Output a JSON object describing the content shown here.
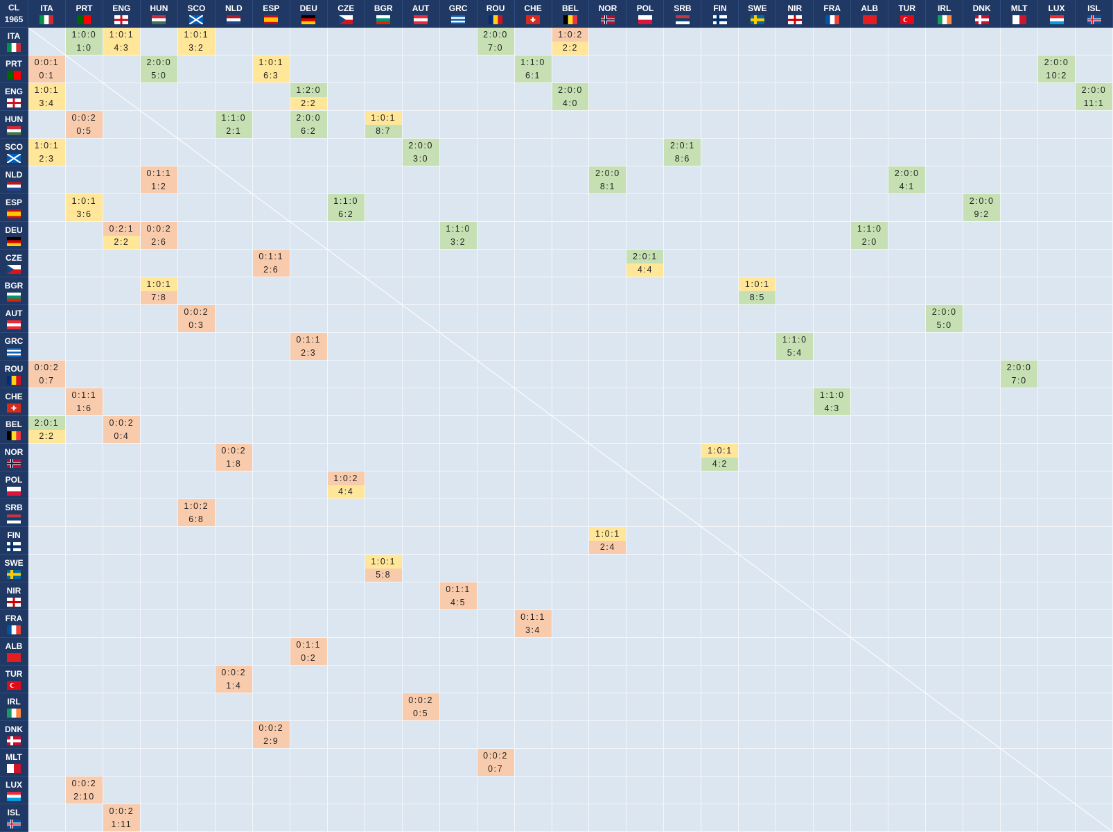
{
  "corner": {
    "competition": "CL",
    "year": "1965"
  },
  "teams": [
    "ITA",
    "PRT",
    "ENG",
    "HUN",
    "SCO",
    "NLD",
    "ESP",
    "DEU",
    "CZE",
    "BGR",
    "AUT",
    "GRC",
    "ROU",
    "CHE",
    "BEL",
    "NOR",
    "POL",
    "SRB",
    "FIN",
    "SWE",
    "NIR",
    "FRA",
    "ALB",
    "TUR",
    "IRL",
    "DNK",
    "MLT",
    "LUX",
    "ISL"
  ],
  "rows": [
    [
      null,
      {
        "record": "1:0:0",
        "score": "1:0",
        "colors": [
          "#c6e0b4",
          "#c6e0b4"
        ]
      },
      {
        "record": "1:0:1",
        "score": "4:3",
        "colors": [
          "#ffe699",
          "#ffe699"
        ]
      },
      null,
      {
        "record": "1:0:1",
        "score": "3:2",
        "colors": [
          "#ffe699",
          "#ffe699"
        ]
      },
      null,
      null,
      null,
      null,
      null,
      null,
      null,
      {
        "record": "2:0:0",
        "score": "7:0",
        "colors": [
          "#c6e0b4",
          "#c6e0b4"
        ]
      },
      null,
      {
        "record": "1:0:2",
        "score": "2:2",
        "colors": [
          "#f8cbad",
          "#ffe699"
        ]
      },
      null,
      null,
      null,
      null,
      null,
      null,
      null,
      null,
      null,
      null,
      null,
      null,
      null,
      null
    ],
    [
      {
        "record": "0:0:1",
        "score": "0:1",
        "colors": [
          "#f8cbad",
          "#f8cbad"
        ]
      },
      null,
      null,
      {
        "record": "2:0:0",
        "score": "5:0",
        "colors": [
          "#c6e0b4",
          "#c6e0b4"
        ]
      },
      null,
      null,
      {
        "record": "1:0:1",
        "score": "6:3",
        "colors": [
          "#ffe699",
          "#ffe699"
        ]
      },
      null,
      null,
      null,
      null,
      null,
      null,
      {
        "record": "1:1:0",
        "score": "6:1",
        "colors": [
          "#c6e0b4",
          "#c6e0b4"
        ]
      },
      null,
      null,
      null,
      null,
      null,
      null,
      null,
      null,
      null,
      null,
      null,
      null,
      null,
      {
        "record": "2:0:0",
        "score": "10:2",
        "colors": [
          "#c6e0b4",
          "#c6e0b4"
        ]
      },
      null
    ],
    [
      {
        "record": "1:0:1",
        "score": "3:4",
        "colors": [
          "#ffe699",
          "#ffe699"
        ]
      },
      null,
      null,
      null,
      null,
      null,
      null,
      {
        "record": "1:2:0",
        "score": "2:2",
        "colors": [
          "#c6e0b4",
          "#ffe699"
        ]
      },
      null,
      null,
      null,
      null,
      null,
      null,
      {
        "record": "2:0:0",
        "score": "4:0",
        "colors": [
          "#c6e0b4",
          "#c6e0b4"
        ]
      },
      null,
      null,
      null,
      null,
      null,
      null,
      null,
      null,
      null,
      null,
      null,
      null,
      null,
      {
        "record": "2:0:0",
        "score": "11:1",
        "colors": [
          "#c6e0b4",
          "#c6e0b4"
        ]
      }
    ],
    [
      null,
      {
        "record": "0:0:2",
        "score": "0:5",
        "colors": [
          "#f8cbad",
          "#f8cbad"
        ]
      },
      null,
      null,
      null,
      {
        "record": "1:1:0",
        "score": "2:1",
        "colors": [
          "#c6e0b4",
          "#c6e0b4"
        ]
      },
      null,
      {
        "record": "2:0:0",
        "score": "6:2",
        "colors": [
          "#c6e0b4",
          "#c6e0b4"
        ]
      },
      null,
      {
        "record": "1:0:1",
        "score": "8:7",
        "colors": [
          "#ffe699",
          "#c6e0b4"
        ]
      },
      null,
      null,
      null,
      null,
      null,
      null,
      null,
      null,
      null,
      null,
      null,
      null,
      null,
      null,
      null,
      null,
      null,
      null,
      null
    ],
    [
      {
        "record": "1:0:1",
        "score": "2:3",
        "colors": [
          "#ffe699",
          "#ffe699"
        ]
      },
      null,
      null,
      null,
      null,
      null,
      null,
      null,
      null,
      null,
      {
        "record": "2:0:0",
        "score": "3:0",
        "colors": [
          "#c6e0b4",
          "#c6e0b4"
        ]
      },
      null,
      null,
      null,
      null,
      null,
      null,
      {
        "record": "2:0:1",
        "score": "8:6",
        "colors": [
          "#c6e0b4",
          "#c6e0b4"
        ]
      },
      null,
      null,
      null,
      null,
      null,
      null,
      null,
      null,
      null,
      null,
      null
    ],
    [
      null,
      null,
      null,
      {
        "record": "0:1:1",
        "score": "1:2",
        "colors": [
          "#f8cbad",
          "#f8cbad"
        ]
      },
      null,
      null,
      null,
      null,
      null,
      null,
      null,
      null,
      null,
      null,
      null,
      {
        "record": "2:0:0",
        "score": "8:1",
        "colors": [
          "#c6e0b4",
          "#c6e0b4"
        ]
      },
      null,
      null,
      null,
      null,
      null,
      null,
      null,
      {
        "record": "2:0:0",
        "score": "4:1",
        "colors": [
          "#c6e0b4",
          "#c6e0b4"
        ]
      },
      null,
      null,
      null,
      null,
      null
    ],
    [
      null,
      {
        "record": "1:0:1",
        "score": "3:6",
        "colors": [
          "#ffe699",
          "#ffe699"
        ]
      },
      null,
      null,
      null,
      null,
      null,
      null,
      {
        "record": "1:1:0",
        "score": "6:2",
        "colors": [
          "#c6e0b4",
          "#c6e0b4"
        ]
      },
      null,
      null,
      null,
      null,
      null,
      null,
      null,
      null,
      null,
      null,
      null,
      null,
      null,
      null,
      null,
      null,
      {
        "record": "2:0:0",
        "score": "9:2",
        "colors": [
          "#c6e0b4",
          "#c6e0b4"
        ]
      },
      null,
      null,
      null
    ],
    [
      null,
      null,
      {
        "record": "0:2:1",
        "score": "2:2",
        "colors": [
          "#f8cbad",
          "#ffe699"
        ]
      },
      {
        "record": "0:0:2",
        "score": "2:6",
        "colors": [
          "#f8cbad",
          "#f8cbad"
        ]
      },
      null,
      null,
      null,
      null,
      null,
      null,
      null,
      {
        "record": "1:1:0",
        "score": "3:2",
        "colors": [
          "#c6e0b4",
          "#c6e0b4"
        ]
      },
      null,
      null,
      null,
      null,
      null,
      null,
      null,
      null,
      null,
      null,
      {
        "record": "1:1:0",
        "score": "2:0",
        "colors": [
          "#c6e0b4",
          "#c6e0b4"
        ]
      },
      null,
      null,
      null,
      null,
      null,
      null
    ],
    [
      null,
      null,
      null,
      null,
      null,
      null,
      {
        "record": "0:1:1",
        "score": "2:6",
        "colors": [
          "#f8cbad",
          "#f8cbad"
        ]
      },
      null,
      null,
      null,
      null,
      null,
      null,
      null,
      null,
      null,
      {
        "record": "2:0:1",
        "score": "4:4",
        "colors": [
          "#c6e0b4",
          "#ffe699"
        ]
      },
      null,
      null,
      null,
      null,
      null,
      null,
      null,
      null,
      null,
      null,
      null,
      null
    ],
    [
      null,
      null,
      null,
      {
        "record": "1:0:1",
        "score": "7:8",
        "colors": [
          "#ffe699",
          "#f8cbad"
        ]
      },
      null,
      null,
      null,
      null,
      null,
      null,
      null,
      null,
      null,
      null,
      null,
      null,
      null,
      null,
      null,
      {
        "record": "1:0:1",
        "score": "8:5",
        "colors": [
          "#ffe699",
          "#c6e0b4"
        ]
      },
      null,
      null,
      null,
      null,
      null,
      null,
      null,
      null,
      null
    ],
    [
      null,
      null,
      null,
      null,
      {
        "record": "0:0:2",
        "score": "0:3",
        "colors": [
          "#f8cbad",
          "#f8cbad"
        ]
      },
      null,
      null,
      null,
      null,
      null,
      null,
      null,
      null,
      null,
      null,
      null,
      null,
      null,
      null,
      null,
      null,
      null,
      null,
      null,
      {
        "record": "2:0:0",
        "score": "5:0",
        "colors": [
          "#c6e0b4",
          "#c6e0b4"
        ]
      },
      null,
      null,
      null,
      null
    ],
    [
      null,
      null,
      null,
      null,
      null,
      null,
      null,
      {
        "record": "0:1:1",
        "score": "2:3",
        "colors": [
          "#f8cbad",
          "#f8cbad"
        ]
      },
      null,
      null,
      null,
      null,
      null,
      null,
      null,
      null,
      null,
      null,
      null,
      null,
      {
        "record": "1:1:0",
        "score": "5:4",
        "colors": [
          "#c6e0b4",
          "#c6e0b4"
        ]
      },
      null,
      null,
      null,
      null,
      null,
      null,
      null,
      null
    ],
    [
      {
        "record": "0:0:2",
        "score": "0:7",
        "colors": [
          "#f8cbad",
          "#f8cbad"
        ]
      },
      null,
      null,
      null,
      null,
      null,
      null,
      null,
      null,
      null,
      null,
      null,
      null,
      null,
      null,
      null,
      null,
      null,
      null,
      null,
      null,
      null,
      null,
      null,
      null,
      null,
      {
        "record": "2:0:0",
        "score": "7:0",
        "colors": [
          "#c6e0b4",
          "#c6e0b4"
        ]
      },
      null,
      null
    ],
    [
      null,
      {
        "record": "0:1:1",
        "score": "1:6",
        "colors": [
          "#f8cbad",
          "#f8cbad"
        ]
      },
      null,
      null,
      null,
      null,
      null,
      null,
      null,
      null,
      null,
      null,
      null,
      null,
      null,
      null,
      null,
      null,
      null,
      null,
      null,
      {
        "record": "1:1:0",
        "score": "4:3",
        "colors": [
          "#c6e0b4",
          "#c6e0b4"
        ]
      },
      null,
      null,
      null,
      null,
      null,
      null,
      null
    ],
    [
      {
        "record": "2:0:1",
        "score": "2:2",
        "colors": [
          "#c6e0b4",
          "#ffe699"
        ]
      },
      null,
      {
        "record": "0:0:2",
        "score": "0:4",
        "colors": [
          "#f8cbad",
          "#f8cbad"
        ]
      },
      null,
      null,
      null,
      null,
      null,
      null,
      null,
      null,
      null,
      null,
      null,
      null,
      null,
      null,
      null,
      null,
      null,
      null,
      null,
      null,
      null,
      null,
      null,
      null,
      null,
      null
    ],
    [
      null,
      null,
      null,
      null,
      null,
      {
        "record": "0:0:2",
        "score": "1:8",
        "colors": [
          "#f8cbad",
          "#f8cbad"
        ]
      },
      null,
      null,
      null,
      null,
      null,
      null,
      null,
      null,
      null,
      null,
      null,
      null,
      {
        "record": "1:0:1",
        "score": "4:2",
        "colors": [
          "#ffe699",
          "#c6e0b4"
        ]
      },
      null,
      null,
      null,
      null,
      null,
      null,
      null,
      null,
      null,
      null
    ],
    [
      null,
      null,
      null,
      null,
      null,
      null,
      null,
      null,
      {
        "record": "1:0:2",
        "score": "4:4",
        "colors": [
          "#f8cbad",
          "#ffe699"
        ]
      },
      null,
      null,
      null,
      null,
      null,
      null,
      null,
      null,
      null,
      null,
      null,
      null,
      null,
      null,
      null,
      null,
      null,
      null,
      null,
      null
    ],
    [
      null,
      null,
      null,
      null,
      {
        "record": "1:0:2",
        "score": "6:8",
        "colors": [
          "#f8cbad",
          "#f8cbad"
        ]
      },
      null,
      null,
      null,
      null,
      null,
      null,
      null,
      null,
      null,
      null,
      null,
      null,
      null,
      null,
      null,
      null,
      null,
      null,
      null,
      null,
      null,
      null,
      null,
      null
    ],
    [
      null,
      null,
      null,
      null,
      null,
      null,
      null,
      null,
      null,
      null,
      null,
      null,
      null,
      null,
      null,
      {
        "record": "1:0:1",
        "score": "2:4",
        "colors": [
          "#ffe699",
          "#f8cbad"
        ]
      },
      null,
      null,
      null,
      null,
      null,
      null,
      null,
      null,
      null,
      null,
      null,
      null,
      null
    ],
    [
      null,
      null,
      null,
      null,
      null,
      null,
      null,
      null,
      null,
      {
        "record": "1:0:1",
        "score": "5:8",
        "colors": [
          "#ffe699",
          "#f8cbad"
        ]
      },
      null,
      null,
      null,
      null,
      null,
      null,
      null,
      null,
      null,
      null,
      null,
      null,
      null,
      null,
      null,
      null,
      null,
      null,
      null
    ],
    [
      null,
      null,
      null,
      null,
      null,
      null,
      null,
      null,
      null,
      null,
      null,
      {
        "record": "0:1:1",
        "score": "4:5",
        "colors": [
          "#f8cbad",
          "#f8cbad"
        ]
      },
      null,
      null,
      null,
      null,
      null,
      null,
      null,
      null,
      null,
      null,
      null,
      null,
      null,
      null,
      null,
      null,
      null
    ],
    [
      null,
      null,
      null,
      null,
      null,
      null,
      null,
      null,
      null,
      null,
      null,
      null,
      null,
      {
        "record": "0:1:1",
        "score": "3:4",
        "colors": [
          "#f8cbad",
          "#f8cbad"
        ]
      },
      null,
      null,
      null,
      null,
      null,
      null,
      null,
      null,
      null,
      null,
      null,
      null,
      null,
      null,
      null
    ],
    [
      null,
      null,
      null,
      null,
      null,
      null,
      null,
      {
        "record": "0:1:1",
        "score": "0:2",
        "colors": [
          "#f8cbad",
          "#f8cbad"
        ]
      },
      null,
      null,
      null,
      null,
      null,
      null,
      null,
      null,
      null,
      null,
      null,
      null,
      null,
      null,
      null,
      null,
      null,
      null,
      null,
      null,
      null
    ],
    [
      null,
      null,
      null,
      null,
      null,
      {
        "record": "0:0:2",
        "score": "1:4",
        "colors": [
          "#f8cbad",
          "#f8cbad"
        ]
      },
      null,
      null,
      null,
      null,
      null,
      null,
      null,
      null,
      null,
      null,
      null,
      null,
      null,
      null,
      null,
      null,
      null,
      null,
      null,
      null,
      null,
      null,
      null
    ],
    [
      null,
      null,
      null,
      null,
      null,
      null,
      null,
      null,
      null,
      null,
      {
        "record": "0:0:2",
        "score": "0:5",
        "colors": [
          "#f8cbad",
          "#f8cbad"
        ]
      },
      null,
      null,
      null,
      null,
      null,
      null,
      null,
      null,
      null,
      null,
      null,
      null,
      null,
      null,
      null,
      null,
      null,
      null
    ],
    [
      null,
      null,
      null,
      null,
      null,
      null,
      {
        "record": "0:0:2",
        "score": "2:9",
        "colors": [
          "#f8cbad",
          "#f8cbad"
        ]
      },
      null,
      null,
      null,
      null,
      null,
      null,
      null,
      null,
      null,
      null,
      null,
      null,
      null,
      null,
      null,
      null,
      null,
      null,
      null,
      null,
      null,
      null
    ],
    [
      null,
      null,
      null,
      null,
      null,
      null,
      null,
      null,
      null,
      null,
      null,
      null,
      {
        "record": "0:0:2",
        "score": "0:7",
        "colors": [
          "#f8cbad",
          "#f8cbad"
        ]
      },
      null,
      null,
      null,
      null,
      null,
      null,
      null,
      null,
      null,
      null,
      null,
      null,
      null,
      null,
      null,
      null
    ],
    [
      null,
      {
        "record": "0:0:2",
        "score": "2:10",
        "colors": [
          "#f8cbad",
          "#f8cbad"
        ]
      },
      null,
      null,
      null,
      null,
      null,
      null,
      null,
      null,
      null,
      null,
      null,
      null,
      null,
      null,
      null,
      null,
      null,
      null,
      null,
      null,
      null,
      null,
      null,
      null,
      null,
      null,
      null
    ],
    [
      null,
      null,
      {
        "record": "0:0:2",
        "score": "1:11",
        "colors": [
          "#f8cbad",
          "#f8cbad"
        ]
      },
      null,
      null,
      null,
      null,
      null,
      null,
      null,
      null,
      null,
      null,
      null,
      null,
      null,
      null,
      null,
      null,
      null,
      null,
      null,
      null,
      null,
      null,
      null,
      null,
      null,
      null
    ]
  ]
}
